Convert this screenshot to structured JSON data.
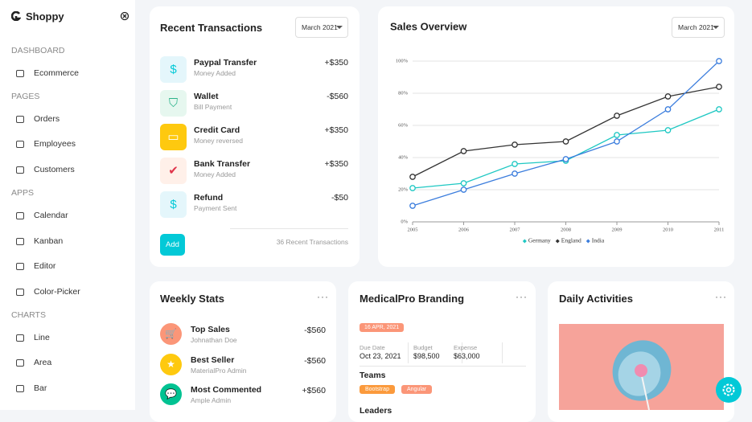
{
  "sidebar": {
    "brand": "Shoppy",
    "sections": [
      {
        "title": "DASHBOARD",
        "items": [
          "Ecommerce"
        ]
      },
      {
        "title": "PAGES",
        "items": [
          "Orders",
          "Employees",
          "Customers"
        ]
      },
      {
        "title": "APPS",
        "items": [
          "Calendar",
          "Kanban",
          "Editor",
          "Color-Picker"
        ]
      },
      {
        "title": "CHARTS",
        "items": [
          "Line",
          "Area",
          "Bar"
        ]
      }
    ]
  },
  "transactions": {
    "title": "Recent Transactions",
    "filter": "March 2021",
    "items": [
      {
        "name": "Paypal Transfer",
        "detail": "Money Added",
        "amount": "+$350"
      },
      {
        "name": "Wallet",
        "detail": "Bill Payment",
        "amount": "-$560"
      },
      {
        "name": "Credit Card",
        "detail": "Money reversed",
        "amount": "+$350"
      },
      {
        "name": "Bank Transfer",
        "detail": "Money Added",
        "amount": "+$350"
      },
      {
        "name": "Refund",
        "detail": "Payment Sent",
        "amount": "-$50"
      }
    ],
    "button": "Add",
    "footer": "36 Recent Transactions"
  },
  "sales_overview": {
    "filter": "March 2021"
  },
  "chart_data": {
    "type": "line",
    "title": "Sales Overview",
    "x": [
      2005,
      2006,
      2007,
      2008,
      2009,
      2010,
      2011
    ],
    "xlim": [
      2005,
      2011
    ],
    "xticks": [
      2005,
      2006,
      2007,
      2008,
      2009,
      2010,
      2011
    ],
    "ylim": [
      0,
      100
    ],
    "yticks": [
      {
        "value": 0,
        "label": "0%"
      },
      {
        "value": 20,
        "label": "20%"
      },
      {
        "value": 40,
        "label": "40%"
      },
      {
        "value": 60,
        "label": "60%"
      },
      {
        "value": 80,
        "label": "80%"
      },
      {
        "value": 100,
        "label": "100%"
      }
    ],
    "grid": true,
    "legend": "bottom",
    "series": [
      {
        "name": "Germany",
        "color": "#1fc8c3",
        "values": [
          21,
          24,
          36,
          38,
          54,
          57,
          70
        ]
      },
      {
        "name": "England",
        "color": "#333333",
        "values": [
          28,
          44,
          48,
          50,
          66,
          78,
          84
        ]
      },
      {
        "name": "India",
        "color": "#3b7ddd",
        "values": [
          10,
          20,
          30,
          39,
          50,
          70,
          100
        ]
      }
    ]
  },
  "weekly_stats": {
    "title": "Weekly Stats",
    "items": [
      {
        "name": "Top Sales",
        "detail": "Johnathan Doe",
        "amount": "-$560"
      },
      {
        "name": "Best Seller",
        "detail": "MaterialPro Admin",
        "amount": "-$560"
      },
      {
        "name": "Most Commented",
        "detail": "Ample Admin",
        "amount": "+$560"
      }
    ]
  },
  "branding": {
    "title": "MedicalPro Branding",
    "badge": "16 APR, 2021",
    "stats": [
      {
        "label": "Due Date",
        "value": "Oct 23, 2021"
      },
      {
        "label": "Budget",
        "value": "$98,500"
      },
      {
        "label": "Expense",
        "value": "$63,000"
      }
    ],
    "teams_title": "Teams",
    "teams": [
      "Bootstrap",
      "Angular"
    ],
    "leaders_title": "Leaders"
  },
  "daily_activities": {
    "title": "Daily Activities"
  }
}
